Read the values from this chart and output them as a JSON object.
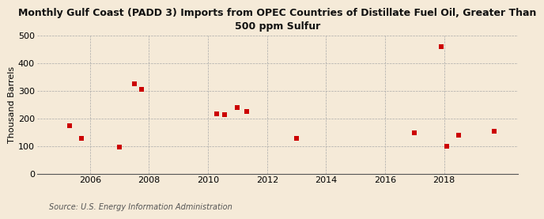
{
  "title": "Monthly Gulf Coast (PADD 3) Imports from OPEC Countries of Distillate Fuel Oil, Greater Than\n500 ppm Sulfur",
  "ylabel": "Thousand Barrels",
  "source": "Source: U.S. Energy Information Administration",
  "xlim": [
    2004.2,
    2020.5
  ],
  "ylim": [
    0,
    500
  ],
  "yticks": [
    0,
    100,
    200,
    300,
    400,
    500
  ],
  "xticks": [
    2006,
    2008,
    2010,
    2012,
    2014,
    2016,
    2018
  ],
  "background_color": "#f5ead8",
  "plot_bg_color": "#f5ead8",
  "marker_color": "#cc0000",
  "marker_size": 25,
  "grid_color": "#aaaaaa",
  "title_fontsize": 9,
  "axis_fontsize": 8,
  "source_fontsize": 7,
  "data_x": [
    2005.3,
    2005.7,
    2007.0,
    2007.5,
    2007.75,
    2010.3,
    2010.55,
    2011.0,
    2011.3,
    2013.0,
    2017.0,
    2017.9,
    2018.1,
    2018.5,
    2019.7
  ],
  "data_y": [
    175,
    130,
    98,
    325,
    305,
    218,
    215,
    240,
    225,
    130,
    150,
    460,
    100,
    140,
    155
  ]
}
